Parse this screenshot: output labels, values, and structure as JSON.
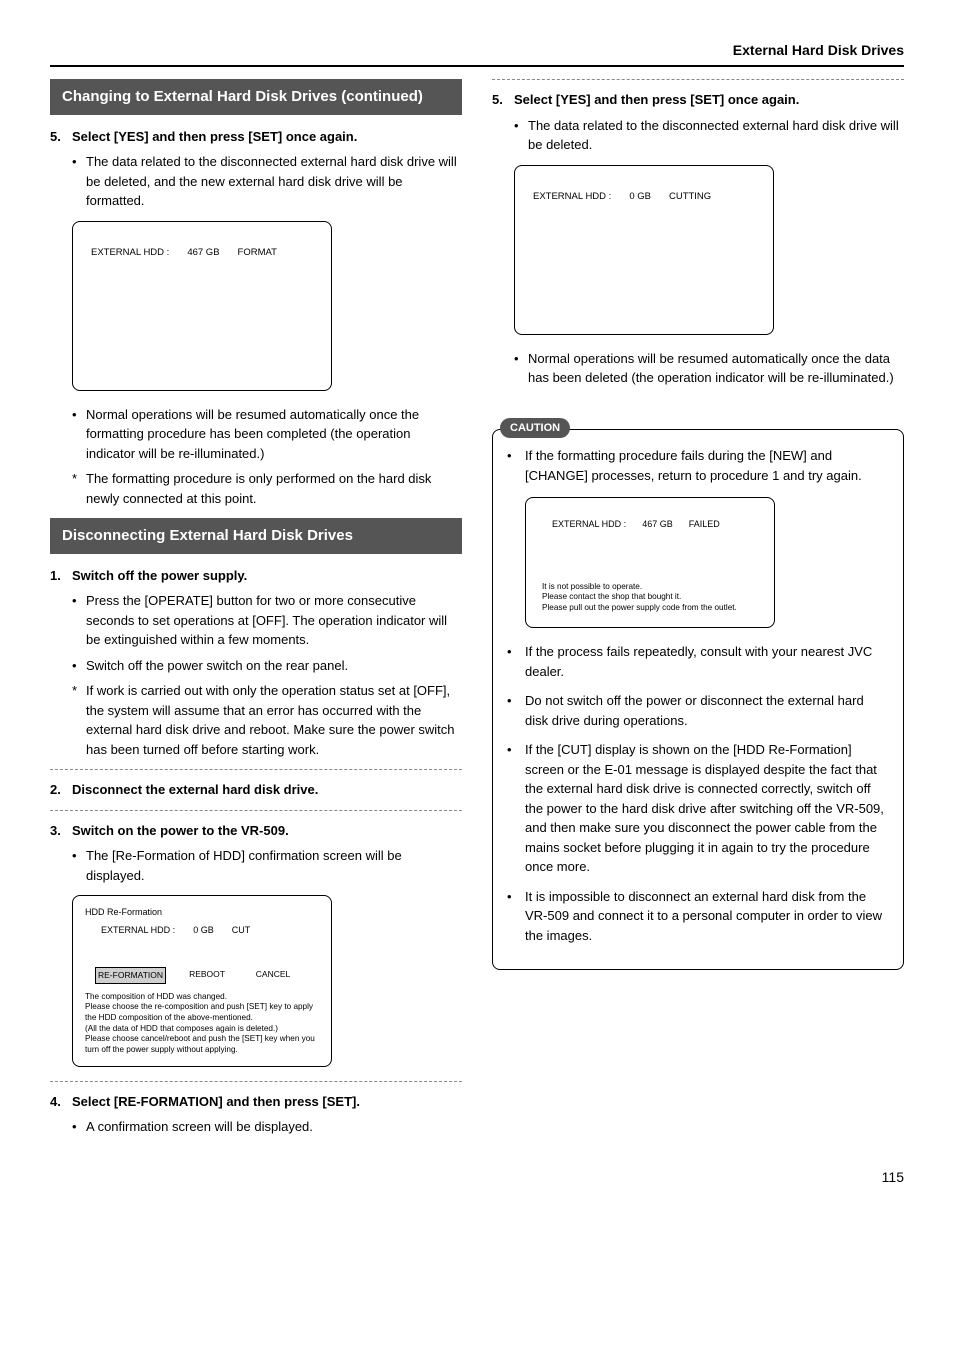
{
  "header": {
    "title": "External Hard Disk Drives"
  },
  "left": {
    "heading1": "Changing to External Hard Disk Drives (continued)",
    "step5": {
      "num": "5.",
      "title": "Select [YES] and then press [SET] once again.",
      "b1": "The data related to the disconnected external hard disk drive will be deleted, and the new external hard disk drive will be formatted.",
      "screen_label": "EXTERNAL HDD :",
      "screen_size": "467  GB",
      "screen_status": "FORMAT",
      "b2": "Normal operations will be resumed automatically once the formatting procedure has been completed (the operation indicator will be re-illuminated.)",
      "b3": "The formatting procedure is only performed on the hard disk newly connected at this point."
    },
    "heading2": "Disconnecting External Hard Disk Drives",
    "step1": {
      "num": "1.",
      "title": "Switch off the power supply.",
      "b1": "Press the [OPERATE] button for two or more consecutive seconds to set operations at [OFF]. The operation indicator will be extinguished within a few moments.",
      "b2": "Switch off the power switch on the rear panel.",
      "b3": "If work is carried out with only the operation status set at [OFF], the system will assume that an error has occurred with the external hard disk drive and reboot. Make sure the power switch has been turned off before starting work."
    },
    "step2": {
      "num": "2.",
      "title": "Disconnect the external hard disk drive."
    },
    "step3": {
      "num": "3.",
      "title": "Switch on the power to the VR-509.",
      "b1": "The [Re-Formation of HDD] confirmation screen will be displayed.",
      "box_title": "HDD Re-Formation",
      "box_label": "EXTERNAL HDD :",
      "box_size": "0  GB",
      "box_status": "CUT",
      "btn1": "RE-FORMATION",
      "btn2": "REBOOT",
      "btn3": "CANCEL",
      "box_msg1": "The composition of HDD was changed.",
      "box_msg2": "Please choose the re-composition and push [SET] key to apply the HDD composition of the above-mentioned.",
      "box_msg3": "(All the data of HDD that composes again is deleted.)",
      "box_msg4": "Please choose cancel/reboot and push the [SET] key when you turn off the power supply without applying."
    },
    "step4": {
      "num": "4.",
      "title": "Select [RE-FORMATION] and then press [SET].",
      "b1": "A confirmation screen will be displayed."
    }
  },
  "right": {
    "step5": {
      "num": "5.",
      "title": "Select [YES] and then press [SET] once again.",
      "b1": "The data related to the disconnected external hard disk drive will be deleted.",
      "screen_label": "EXTERNAL HDD :",
      "screen_size": "0  GB",
      "screen_status": "CUTTING",
      "b2": "Normal operations will be resumed automatically once the data has been deleted (the operation indicator will be re-illuminated.)"
    },
    "caution": {
      "label": "CAUTION",
      "c1": "If the formatting procedure fails during the [NEW] and [CHANGE] processes, return to procedure 1 and try again.",
      "failed_label": "EXTERNAL HDD :",
      "failed_size": "467  GB",
      "failed_status": "FAILED",
      "failed_msg1": "It is not possible to operate.",
      "failed_msg2": "Please contact the shop that bought it.",
      "failed_msg3": "Please pull out the power supply code from the outlet.",
      "c2": "If the process fails repeatedly, consult with your nearest JVC dealer.",
      "c3": "Do not switch off the power or disconnect the external hard disk drive during operations.",
      "c4": "If the [CUT] display is shown on the [HDD Re-Formation] screen or the E-01 message is displayed despite the fact that the external hard disk drive is connected correctly, switch off the power to the hard disk drive after switching off the VR-509, and then make sure you disconnect the power cable from the mains socket before plugging it in again to try the procedure once more.",
      "c5": "It is impossible to disconnect an external hard disk from the VR-509 and connect it to a personal computer in order to view the images."
    }
  },
  "page": "115"
}
